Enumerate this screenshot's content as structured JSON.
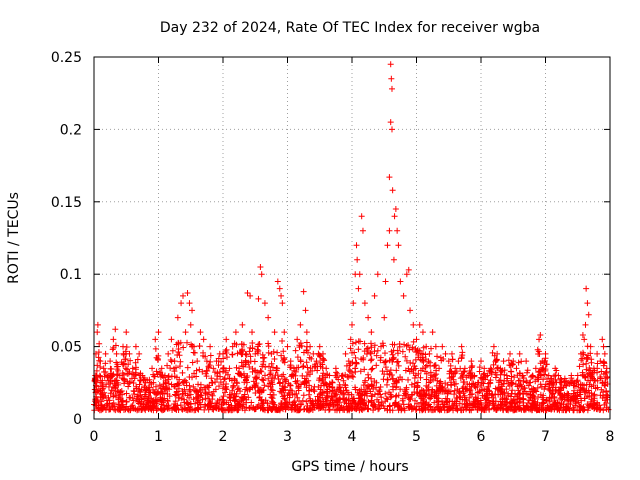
{
  "chart_data": {
    "type": "scatter",
    "title": "Day 232 of 2024, Rate Of TEC Index for receiver wgba",
    "xlabel": "GPS time / hours",
    "ylabel": "ROTI / TECUs",
    "xlim": [
      0,
      8
    ],
    "ylim": [
      0,
      0.25
    ],
    "xticks": [
      0,
      1,
      2,
      3,
      4,
      5,
      6,
      7,
      8
    ],
    "yticks": [
      0,
      0.05,
      0.1,
      0.15,
      0.2,
      0.25
    ],
    "xtick_labels": [
      "0",
      "1",
      "2",
      "3",
      "4",
      "5",
      "6",
      "7",
      "8"
    ],
    "ytick_labels": [
      "0",
      "0.05",
      "0.1",
      "0.15",
      "0.2",
      "0.25"
    ],
    "grid": true,
    "marker": "+",
    "color": "#ff0000",
    "series": [
      {
        "name": "ROTI",
        "points": [
          [
            0.0,
            0.01
          ],
          [
            0.02,
            0.03
          ],
          [
            0.03,
            0.045
          ],
          [
            0.05,
            0.06
          ],
          [
            0.06,
            0.065
          ],
          [
            0.08,
            0.052
          ],
          [
            0.1,
            0.04
          ],
          [
            0.12,
            0.025
          ],
          [
            0.15,
            0.035
          ],
          [
            0.18,
            0.045
          ],
          [
            0.2,
            0.03
          ],
          [
            0.25,
            0.04
          ],
          [
            0.3,
            0.055
          ],
          [
            0.33,
            0.062
          ],
          [
            0.35,
            0.045
          ],
          [
            0.4,
            0.03
          ],
          [
            0.45,
            0.05
          ],
          [
            0.5,
            0.06
          ],
          [
            0.55,
            0.045
          ],
          [
            0.6,
            0.035
          ],
          [
            0.65,
            0.05
          ],
          [
            0.7,
            0.045
          ],
          [
            0.75,
            0.03
          ],
          [
            0.8,
            0.025
          ],
          [
            0.85,
            0.02
          ],
          [
            0.9,
            0.035
          ],
          [
            0.95,
            0.055
          ],
          [
            1.0,
            0.06
          ],
          [
            1.05,
            0.035
          ],
          [
            1.1,
            0.03
          ],
          [
            1.15,
            0.045
          ],
          [
            1.2,
            0.055
          ],
          [
            1.25,
            0.04
          ],
          [
            1.3,
            0.07
          ],
          [
            1.35,
            0.08
          ],
          [
            1.38,
            0.085
          ],
          [
            1.42,
            0.06
          ],
          [
            1.45,
            0.087
          ],
          [
            1.48,
            0.08
          ],
          [
            1.5,
            0.065
          ],
          [
            1.52,
            0.075
          ],
          [
            1.55,
            0.05
          ],
          [
            1.6,
            0.04
          ],
          [
            1.65,
            0.06
          ],
          [
            1.7,
            0.055
          ],
          [
            1.75,
            0.04
          ],
          [
            1.8,
            0.05
          ],
          [
            1.85,
            0.035
          ],
          [
            1.9,
            0.04
          ],
          [
            1.95,
            0.045
          ],
          [
            2.0,
            0.045
          ],
          [
            2.05,
            0.055
          ],
          [
            2.1,
            0.035
          ],
          [
            2.15,
            0.05
          ],
          [
            2.2,
            0.06
          ],
          [
            2.25,
            0.035
          ],
          [
            2.3,
            0.065
          ],
          [
            2.35,
            0.045
          ],
          [
            2.38,
            0.087
          ],
          [
            2.42,
            0.085
          ],
          [
            2.45,
            0.06
          ],
          [
            2.5,
            0.045
          ],
          [
            2.55,
            0.083
          ],
          [
            2.58,
            0.105
          ],
          [
            2.6,
            0.1
          ],
          [
            2.65,
            0.08
          ],
          [
            2.7,
            0.07
          ],
          [
            2.75,
            0.045
          ],
          [
            2.8,
            0.06
          ],
          [
            2.85,
            0.095
          ],
          [
            2.88,
            0.09
          ],
          [
            2.9,
            0.085
          ],
          [
            2.92,
            0.08
          ],
          [
            2.95,
            0.06
          ],
          [
            3.0,
            0.05
          ],
          [
            3.05,
            0.04
          ],
          [
            3.1,
            0.035
          ],
          [
            3.15,
            0.055
          ],
          [
            3.2,
            0.065
          ],
          [
            3.25,
            0.088
          ],
          [
            3.28,
            0.075
          ],
          [
            3.3,
            0.06
          ],
          [
            3.35,
            0.05
          ],
          [
            3.4,
            0.045
          ],
          [
            3.45,
            0.04
          ],
          [
            3.5,
            0.05
          ],
          [
            3.55,
            0.045
          ],
          [
            3.6,
            0.035
          ],
          [
            3.65,
            0.03
          ],
          [
            3.7,
            0.025
          ],
          [
            3.75,
            0.035
          ],
          [
            3.8,
            0.02
          ],
          [
            3.85,
            0.03
          ],
          [
            3.9,
            0.045
          ],
          [
            3.95,
            0.04
          ],
          [
            3.98,
            0.055
          ],
          [
            4.0,
            0.065
          ],
          [
            4.02,
            0.08
          ],
          [
            4.05,
            0.1
          ],
          [
            4.07,
            0.12
          ],
          [
            4.08,
            0.11
          ],
          [
            4.1,
            0.09
          ],
          [
            4.12,
            0.1
          ],
          [
            4.15,
            0.14
          ],
          [
            4.17,
            0.13
          ],
          [
            4.2,
            0.08
          ],
          [
            4.25,
            0.07
          ],
          [
            4.3,
            0.06
          ],
          [
            4.35,
            0.085
          ],
          [
            4.4,
            0.1
          ],
          [
            4.45,
            0.05
          ],
          [
            4.5,
            0.07
          ],
          [
            4.52,
            0.095
          ],
          [
            4.55,
            0.12
          ],
          [
            4.58,
            0.13
          ],
          [
            4.6,
            0.245
          ],
          [
            4.61,
            0.235
          ],
          [
            4.62,
            0.228
          ],
          [
            4.6,
            0.205
          ],
          [
            4.62,
            0.2
          ],
          [
            4.58,
            0.167
          ],
          [
            4.63,
            0.158
          ],
          [
            4.66,
            0.14
          ],
          [
            4.68,
            0.145
          ],
          [
            4.7,
            0.13
          ],
          [
            4.72,
            0.12
          ],
          [
            4.65,
            0.11
          ],
          [
            4.75,
            0.095
          ],
          [
            4.8,
            0.085
          ],
          [
            4.85,
            0.1
          ],
          [
            4.88,
            0.103
          ],
          [
            4.9,
            0.075
          ],
          [
            4.95,
            0.065
          ],
          [
            5.0,
            0.055
          ],
          [
            5.05,
            0.065
          ],
          [
            5.1,
            0.06
          ],
          [
            5.15,
            0.05
          ],
          [
            5.2,
            0.045
          ],
          [
            5.25,
            0.06
          ],
          [
            5.3,
            0.05
          ],
          [
            5.35,
            0.035
          ],
          [
            5.4,
            0.05
          ],
          [
            5.45,
            0.045
          ],
          [
            5.5,
            0.04
          ],
          [
            5.55,
            0.045
          ],
          [
            5.6,
            0.035
          ],
          [
            5.65,
            0.04
          ],
          [
            5.7,
            0.05
          ],
          [
            5.75,
            0.035
          ],
          [
            5.8,
            0.03
          ],
          [
            5.85,
            0.04
          ],
          [
            5.9,
            0.03
          ],
          [
            5.95,
            0.025
          ],
          [
            6.0,
            0.04
          ],
          [
            6.05,
            0.035
          ],
          [
            6.1,
            0.03
          ],
          [
            6.15,
            0.035
          ],
          [
            6.2,
            0.05
          ],
          [
            6.25,
            0.045
          ],
          [
            6.3,
            0.035
          ],
          [
            6.35,
            0.04
          ],
          [
            6.4,
            0.03
          ],
          [
            6.45,
            0.045
          ],
          [
            6.5,
            0.04
          ],
          [
            6.55,
            0.035
          ],
          [
            6.6,
            0.045
          ],
          [
            6.65,
            0.03
          ],
          [
            6.7,
            0.04
          ],
          [
            6.75,
            0.025
          ],
          [
            6.8,
            0.03
          ],
          [
            6.85,
            0.035
          ],
          [
            6.9,
            0.055
          ],
          [
            6.92,
            0.058
          ],
          [
            6.95,
            0.04
          ],
          [
            7.0,
            0.045
          ],
          [
            7.05,
            0.03
          ],
          [
            7.1,
            0.025
          ],
          [
            7.15,
            0.035
          ],
          [
            7.2,
            0.03
          ],
          [
            7.25,
            0.025
          ],
          [
            7.3,
            0.028
          ],
          [
            7.35,
            0.025
          ],
          [
            7.4,
            0.03
          ],
          [
            7.45,
            0.025
          ],
          [
            7.5,
            0.03
          ],
          [
            7.55,
            0.045
          ],
          [
            7.58,
            0.058
          ],
          [
            7.6,
            0.055
          ],
          [
            7.62,
            0.065
          ],
          [
            7.63,
            0.09
          ],
          [
            7.65,
            0.08
          ],
          [
            7.67,
            0.072
          ],
          [
            7.7,
            0.05
          ],
          [
            7.75,
            0.035
          ],
          [
            7.8,
            0.045
          ],
          [
            7.85,
            0.04
          ],
          [
            7.88,
            0.055
          ],
          [
            7.9,
            0.05
          ],
          [
            7.92,
            0.045
          ],
          [
            7.95,
            0.035
          ]
        ]
      }
    ]
  }
}
